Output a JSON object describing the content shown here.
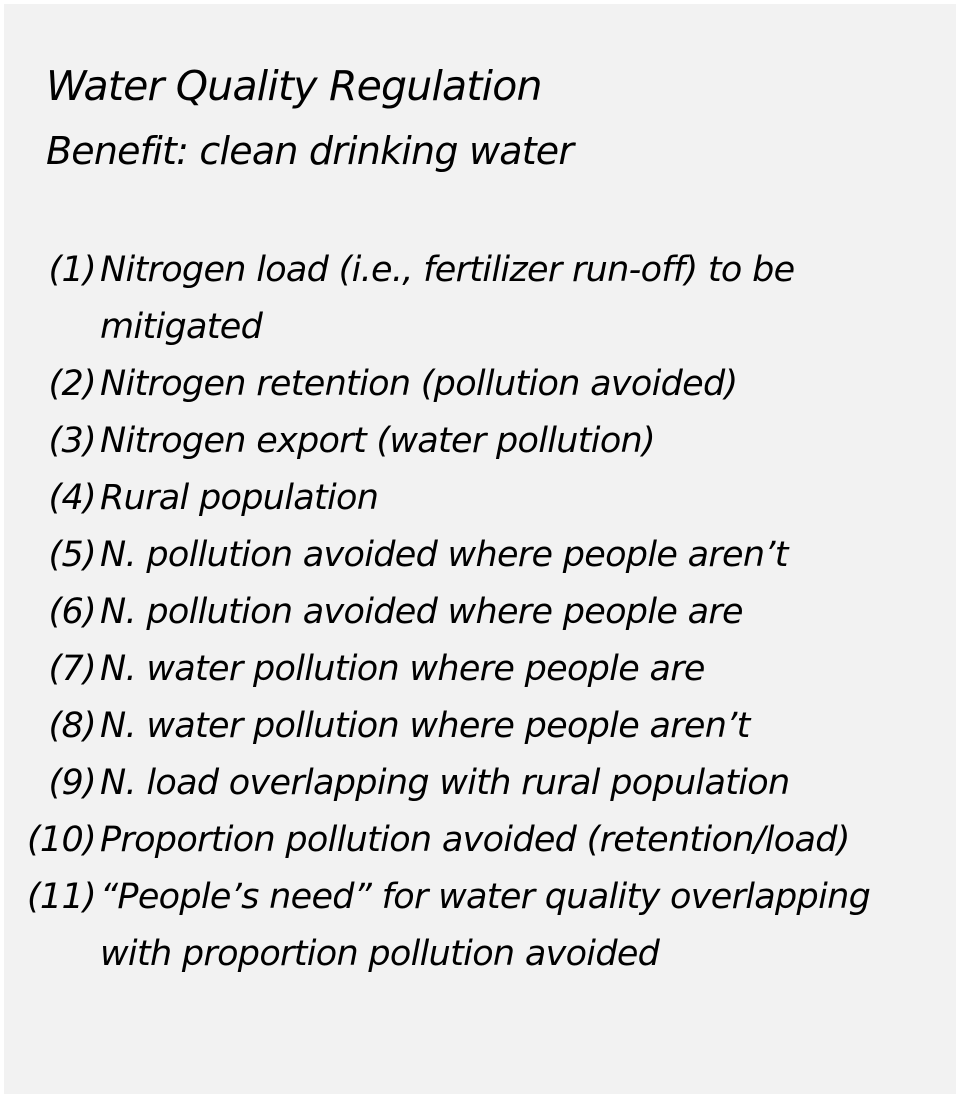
{
  "header": {
    "title": "Water Quality Regulation",
    "subtitle": "Benefit: clean drinking water"
  },
  "items": [
    {
      "num": "(1)",
      "text": "Nitrogen load (i.e., fertilizer run-off) to be mitigated"
    },
    {
      "num": "(2)",
      "text": "Nitrogen retention (pollution avoided)"
    },
    {
      "num": "(3)",
      "text": "Nitrogen export (water pollution)"
    },
    {
      "num": "(4)",
      "text": "Rural population"
    },
    {
      "num": "(5)",
      "text": "N. pollution avoided where people aren’t"
    },
    {
      "num": "(6)",
      "text": "N. pollution avoided where people are"
    },
    {
      "num": "(7)",
      "text": "N. water pollution where people are"
    },
    {
      "num": "(8)",
      "text": "N. water pollution where people aren’t"
    },
    {
      "num": "(9)",
      "text": "N. load overlapping with rural population"
    },
    {
      "num": "(10)",
      "text": "Proportion pollution avoided (retention/load)"
    },
    {
      "num": "(11)",
      "text": "“People’s need” for water quality overlapping with proportion pollution avoided"
    }
  ]
}
